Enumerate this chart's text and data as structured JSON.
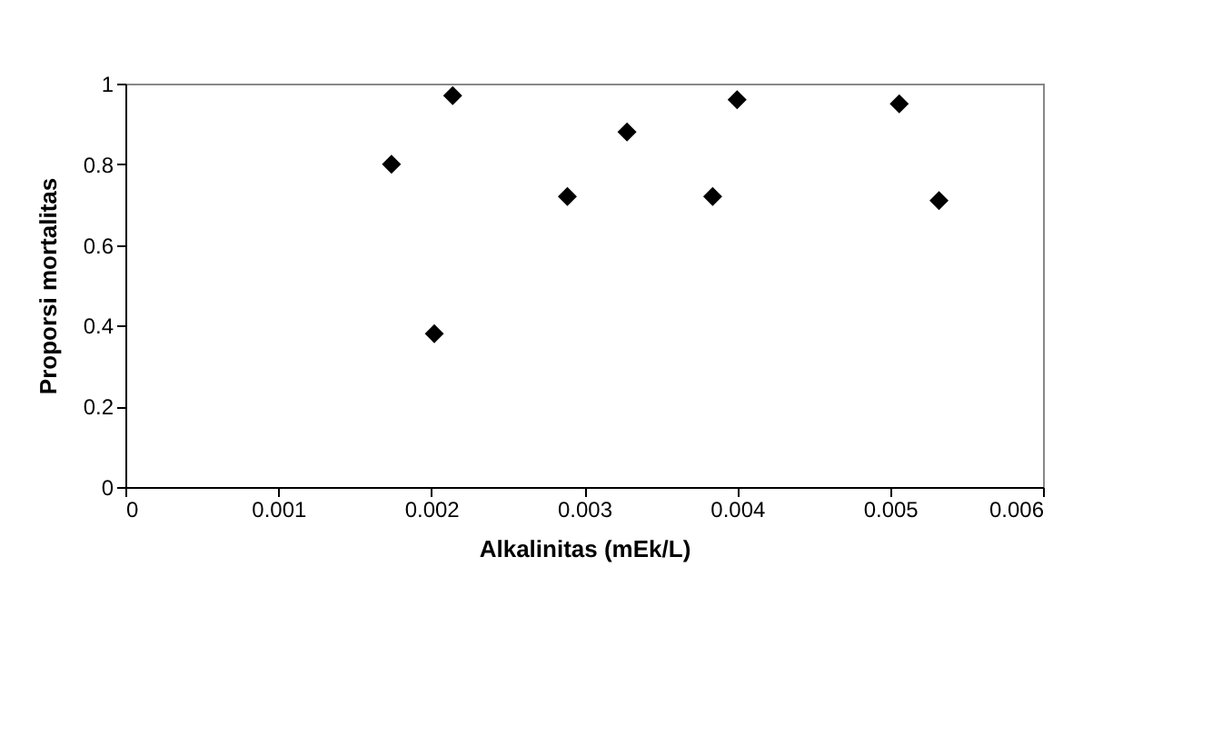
{
  "chart_data": {
    "type": "scatter",
    "xlabel": "Alkalinitas (mEk/L)",
    "ylabel": "Proporsi mortalitas",
    "x": [
      0.00174,
      0.00214,
      0.00202,
      0.00289,
      0.00328,
      0.00384,
      0.004,
      0.00506,
      0.00532
    ],
    "values": [
      0.8,
      0.97,
      0.38,
      0.72,
      0.88,
      0.72,
      0.96,
      0.95,
      0.71
    ],
    "color": "#000000",
    "marker": "diamond",
    "xlim": [
      0,
      0.006
    ],
    "xticks": [
      0,
      0.001,
      0.002,
      0.003,
      0.004,
      0.005,
      0.006
    ],
    "ylim": [
      0,
      1
    ],
    "yticks": [
      0,
      0.2,
      0.4,
      0.6,
      0.8,
      1
    ],
    "grid": false
  }
}
